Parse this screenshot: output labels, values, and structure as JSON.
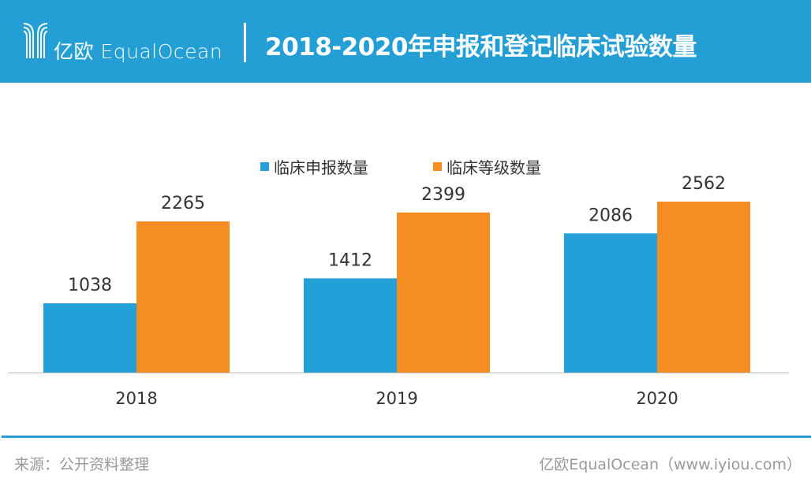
{
  "header": {
    "logo_text": "亿欧 EqualOcean",
    "title": "2018-2020年申报和登记临床试验数量"
  },
  "chart_data": {
    "type": "bar",
    "title": "2018-2020年申报和登记临床试验数量",
    "categories": [
      "2018",
      "2019",
      "2020"
    ],
    "series": [
      {
        "name": "临床申报数量",
        "values": [
          1038,
          1412,
          2086
        ],
        "color": "#24a0d8"
      },
      {
        "name": "临床等级数量",
        "values": [
          2265,
          2399,
          2562
        ],
        "color": "#f68d22"
      }
    ],
    "xlabel": "",
    "ylabel": "",
    "ylim": [
      0,
      3000
    ],
    "grid": false,
    "legend": "top-center",
    "data_labels": true
  },
  "footer": {
    "source": "来源：公开资料整理",
    "credit": "亿欧EqualOcean（www.iyiou.com）"
  },
  "colors": {
    "brand": "#239fd6",
    "footer_text": "#999999"
  }
}
